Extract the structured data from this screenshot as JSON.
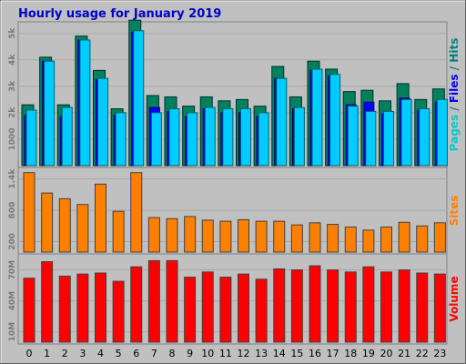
{
  "chart_data": {
    "type": "bar",
    "title": "Hourly usage for January 2019",
    "categories": [
      "0",
      "1",
      "2",
      "3",
      "4",
      "5",
      "6",
      "7",
      "8",
      "9",
      "10",
      "11",
      "12",
      "13",
      "14",
      "15",
      "16",
      "17",
      "18",
      "19",
      "20",
      "21",
      "22",
      "23"
    ],
    "colors": {
      "title": "#0000cc",
      "hits": "#00cccc",
      "hits_fill": "#00ccff",
      "files": "#0000ff",
      "pages": "#008080",
      "pages_fill": "#00805c",
      "sites": "#ff8000",
      "volume": "#ff0000",
      "panel": "#c0c0c0",
      "frame": "#a0a0a0"
    },
    "panels": [
      {
        "id": "top",
        "ylim": [
          0,
          5300
        ],
        "yticks": [
          {
            "value": 1000,
            "label": "1000"
          },
          {
            "value": 2000,
            "label": "2k"
          },
          {
            "value": 3000,
            "label": "3k"
          },
          {
            "value": 4000,
            "label": "4k"
          },
          {
            "value": 5000,
            "label": "5k"
          }
        ],
        "legend": [
          {
            "text": "Pages",
            "color": "#00cccc"
          },
          {
            "text": " / ",
            "color": "#008080"
          },
          {
            "text": "Files",
            "color": "#0000ff"
          },
          {
            "text": " / ",
            "color": "#008080"
          },
          {
            "text": "Hits",
            "color": "#008080"
          }
        ],
        "series": [
          {
            "name": "Hits",
            "values": [
              2300,
              4100,
              2300,
              4900,
              3600,
              2150,
              5500,
              2650,
              2600,
              2250,
              2600,
              2450,
              2500,
              2250,
              3750,
              2600,
              3950,
              3650,
              2800,
              2850,
              2450,
              3100,
              2500,
              2900
            ]
          },
          {
            "name": "Files",
            "values": [
              1900,
              3950,
              1850,
              4750,
              3250,
              1900,
              5050,
              2200,
              2050,
              1850,
              2150,
              2000,
              2000,
              1850,
              3300,
              2150,
              3600,
              3400,
              2300,
              2400,
              1950,
              2550,
              2100,
              2400
            ]
          },
          {
            "name": "Pages",
            "values": [
              2100,
              3950,
              2200,
              4750,
              3300,
              2000,
              5100,
              2000,
              2150,
              2000,
              2200,
              2150,
              2150,
              2000,
              3300,
              2200,
              3650,
              3450,
              2250,
              2050,
              2050,
              2500,
              2150,
              2500
            ]
          }
        ]
      },
      {
        "id": "sites",
        "ylim": [
          0,
          1550
        ],
        "yticks": [
          {
            "value": 200,
            "label": "200"
          },
          {
            "value": 800,
            "label": "800"
          },
          {
            "value": 1400,
            "label": "1.4k"
          }
        ],
        "legend": [
          {
            "text": "Sites",
            "color": "#ff8000"
          }
        ],
        "series": [
          {
            "name": "Sites",
            "values": [
              1520,
              1130,
              1020,
              910,
              1300,
              780,
              1520,
              660,
              640,
              680,
              610,
              590,
              620,
              590,
              590,
              520,
              560,
              530,
              480,
              420,
              480,
              570,
              500,
              560
            ]
          }
        ]
      },
      {
        "id": "volume",
        "ylim": [
          0,
          82
        ],
        "yticks": [
          {
            "value": 10,
            "label": "10M"
          },
          {
            "value": 40,
            "label": "40M"
          },
          {
            "value": 70,
            "label": "70M"
          }
        ],
        "legend": [
          {
            "text": "Volume",
            "color": "#ff0000"
          }
        ],
        "series": [
          {
            "name": "Volume",
            "values": [
              62,
              78,
              64,
              66,
              67,
              59,
              73,
              79,
              79,
              63,
              68,
              63,
              66,
              61,
              71,
              70,
              74,
              70,
              68,
              73,
              68,
              70,
              67,
              66
            ]
          }
        ]
      }
    ]
  }
}
